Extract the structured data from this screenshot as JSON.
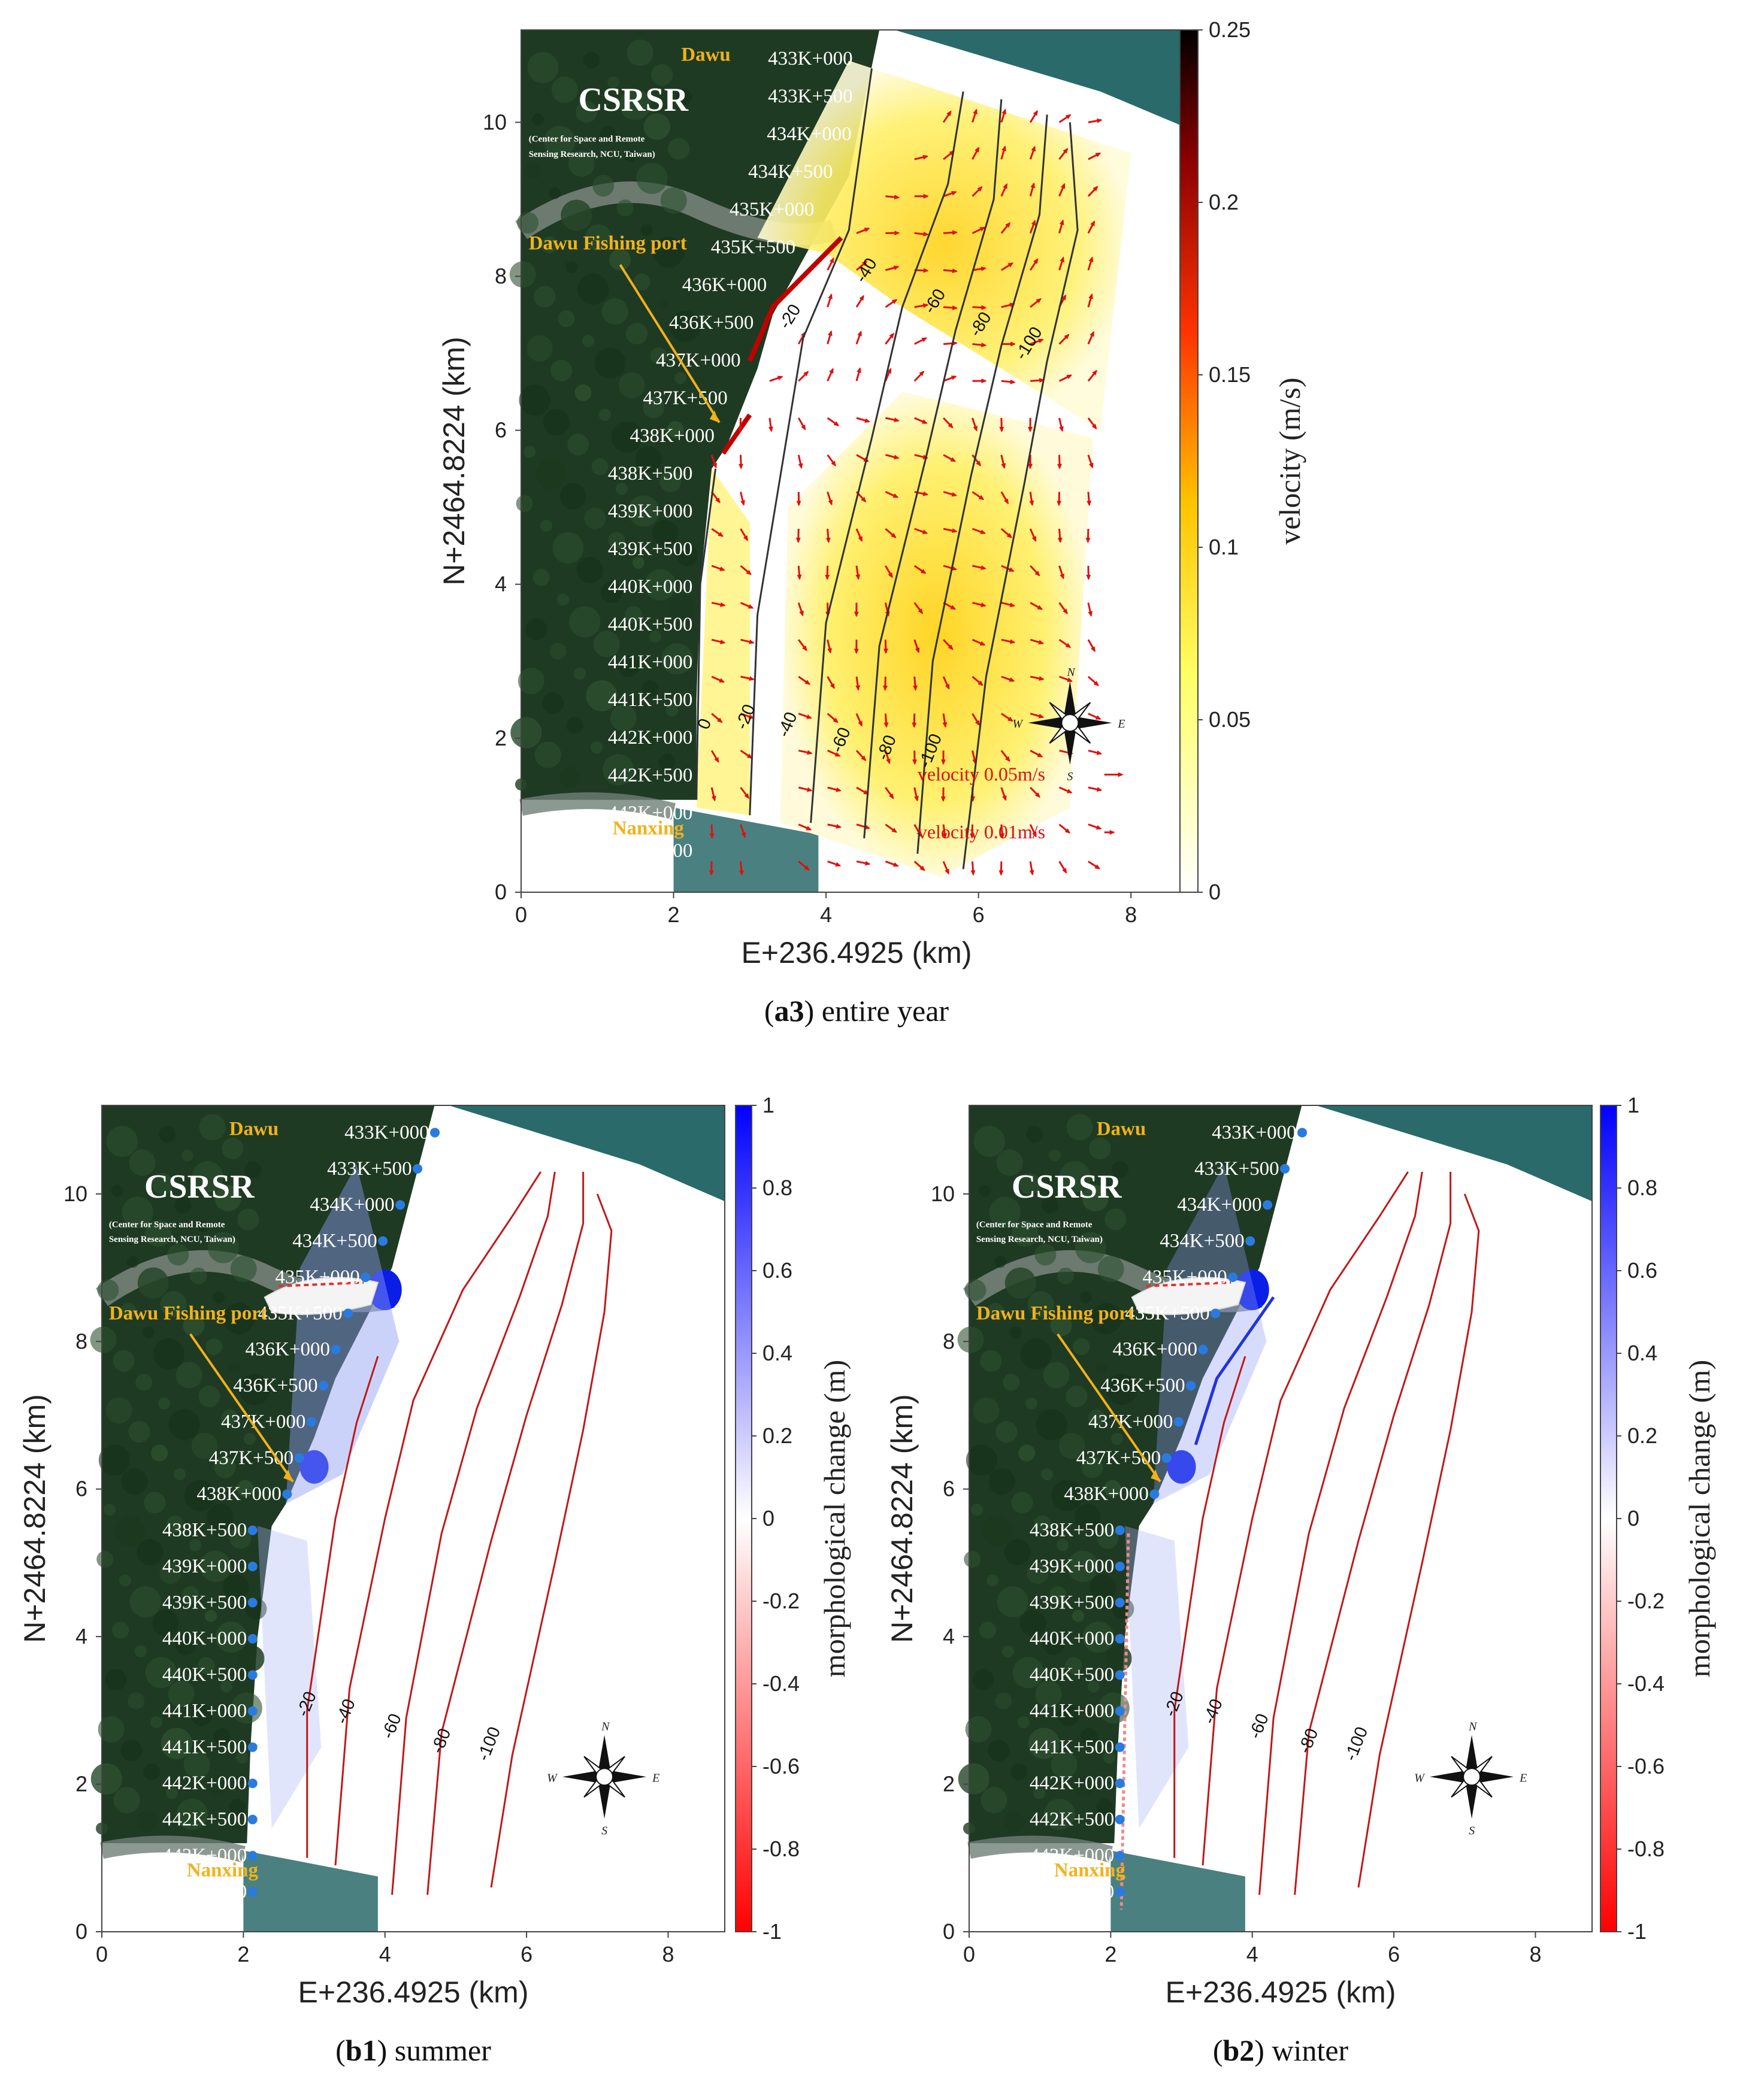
{
  "panels": [
    {
      "id": "a3",
      "caption_bold": "a3",
      "caption_text": "entire year",
      "xlabel": "E+236.4925 (km)",
      "ylabel": "N+2464.8224 (km)",
      "colorbar_label": "velocity (m/s)",
      "colorbar_ticks": [
        "0",
        "0.05",
        "0.1",
        "0.15",
        "0.2",
        "0.25"
      ],
      "legend": [
        "velocity 0.05m/s",
        "velocity 0.01m/s"
      ],
      "contour_labels": [
        "0",
        "-20",
        "-40",
        "-60",
        "-80",
        "-100"
      ]
    },
    {
      "id": "b1",
      "caption_bold": "b1",
      "caption_text": "summer",
      "xlabel": "E+236.4925 (km)",
      "ylabel": "N+2464.8224 (km)",
      "colorbar_label": "morphological change (m)",
      "colorbar_ticks": [
        "-1",
        "-0.8",
        "-0.6",
        "-0.4",
        "-0.2",
        "0",
        "0.2",
        "0.4",
        "0.6",
        "0.8",
        "1"
      ],
      "contour_labels": [
        "-20",
        "-40",
        "-60",
        "-80",
        "-100"
      ]
    },
    {
      "id": "b2",
      "caption_bold": "b2",
      "caption_text": "winter",
      "xlabel": "E+236.4925 (km)",
      "ylabel": "N+2464.8224 (km)",
      "colorbar_label": "morphological change (m)",
      "colorbar_ticks": [
        "-1",
        "-0.8",
        "-0.6",
        "-0.4",
        "-0.2",
        "0",
        "0.2",
        "0.4",
        "0.6",
        "0.8",
        "1"
      ],
      "contour_labels": [
        "-20",
        "-40",
        "-60",
        "-80",
        "-100"
      ]
    }
  ],
  "map_labels": {
    "north_place": "Dawu",
    "south_place": "Nanxing",
    "port": "Dawu Fishing port",
    "org": "CSRSR",
    "org_sub_1": "(Center for Space and Remote",
    "org_sub_2": "Sensing Research, NCU, Taiwan)",
    "compass": [
      "N",
      "S",
      "W",
      "E"
    ],
    "stations": [
      "433K+000",
      "433K+500",
      "434K+000",
      "434K+500",
      "435K+000",
      "435K+500",
      "436K+000",
      "436K+500",
      "437K+000",
      "437K+500",
      "438K+000",
      "438K+500",
      "439K+000",
      "439K+500",
      "440K+000",
      "440K+500",
      "441K+000",
      "441K+500",
      "442K+000",
      "442K+500",
      "443K+000",
      "443K+500"
    ]
  },
  "chart_data": [
    {
      "type": "heatmap",
      "panel": "a3",
      "title": "",
      "xlabel": "E+236.4925 (km)",
      "ylabel": "N+2464.8224 (km)",
      "xlim": [
        0,
        8.8
      ],
      "ylim": [
        0,
        11.2
      ],
      "xticks": [
        0,
        2,
        4,
        6,
        8
      ],
      "yticks": [
        0,
        2,
        4,
        6,
        8,
        10
      ],
      "colorbar": {
        "label": "velocity (m/s)",
        "range": [
          0,
          0.25
        ],
        "ticks": [
          0,
          0.05,
          0.1,
          0.15,
          0.2,
          0.25
        ],
        "colormap": "white-yellow-red-black"
      },
      "contour_levels": [
        0,
        -20,
        -40,
        -60,
        -80,
        -100
      ],
      "vector_legend": [
        "velocity 0.05m/s",
        "velocity 0.01m/s"
      ]
    },
    {
      "type": "heatmap",
      "panel": "b1",
      "title": "",
      "xlabel": "E+236.4925 (km)",
      "ylabel": "N+2464.8224 (km)",
      "xlim": [
        0,
        8.8
      ],
      "ylim": [
        0,
        11.2
      ],
      "xticks": [
        0,
        2,
        4,
        6,
        8
      ],
      "yticks": [
        0,
        2,
        4,
        6,
        8,
        10
      ],
      "colorbar": {
        "label": "morphological change (m)",
        "range": [
          -1,
          1
        ],
        "ticks": [
          -1,
          -0.8,
          -0.6,
          -0.4,
          -0.2,
          0,
          0.2,
          0.4,
          0.6,
          0.8,
          1
        ],
        "colormap": "red-white-blue"
      },
      "contour_levels": [
        -20,
        -40,
        -60,
        -80,
        -100
      ]
    },
    {
      "type": "heatmap",
      "panel": "b2",
      "title": "",
      "xlabel": "E+236.4925 (km)",
      "ylabel": "N+2464.8224 (km)",
      "xlim": [
        0,
        8.8
      ],
      "ylim": [
        0,
        11.2
      ],
      "xticks": [
        0,
        2,
        4,
        6,
        8
      ],
      "yticks": [
        0,
        2,
        4,
        6,
        8,
        10
      ],
      "colorbar": {
        "label": "morphological change (m)",
        "range": [
          -1,
          1
        ],
        "ticks": [
          -1,
          -0.8,
          -0.6,
          -0.4,
          -0.2,
          0,
          0.2,
          0.4,
          0.6,
          0.8,
          1
        ],
        "colormap": "red-white-blue"
      },
      "contour_levels": [
        -20,
        -40,
        -60,
        -80,
        -100
      ]
    }
  ],
  "colors": {
    "land": "#1f3a22",
    "sea": "#2a6a6a",
    "arrow": "#e01010",
    "contour_a": "#333333",
    "contour_b": "#c01818",
    "station_dot": "#2a7be0",
    "place": "#f2b21a"
  }
}
